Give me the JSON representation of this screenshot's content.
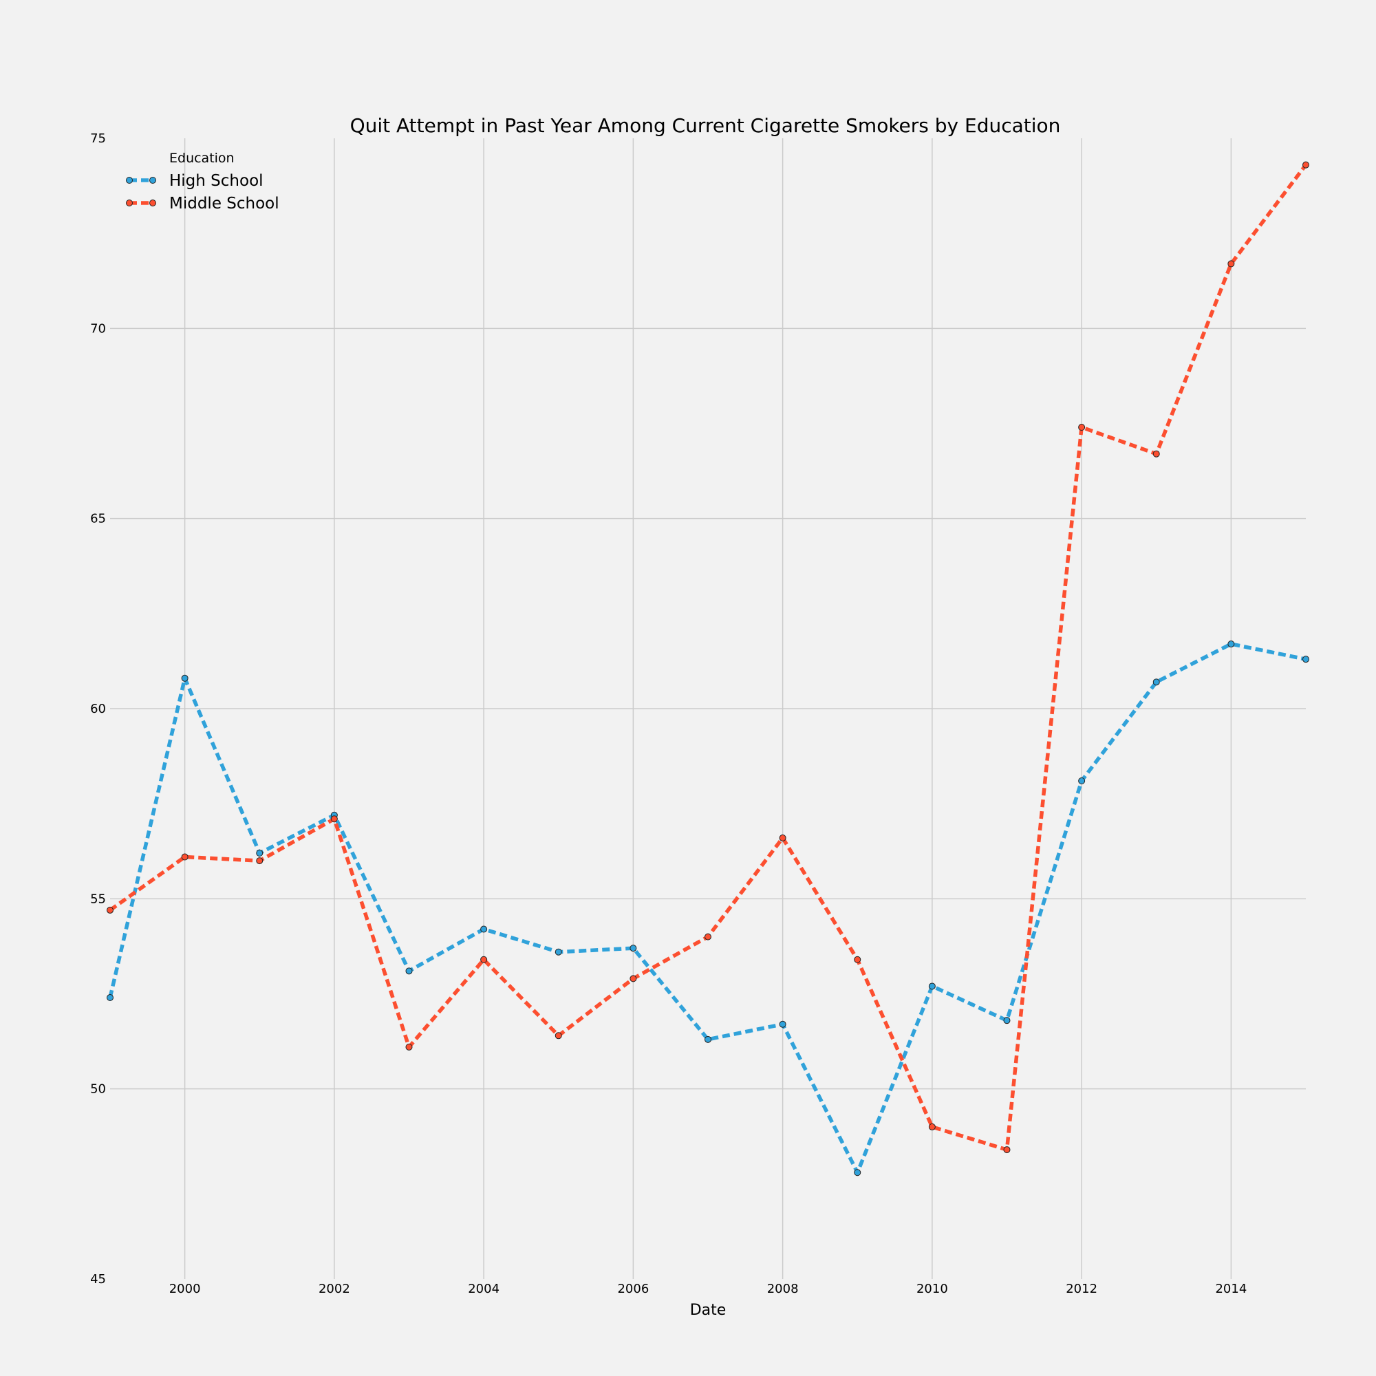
{
  "chart_data": {
    "type": "line",
    "title": "Quit Attempt in Past Year Among Current Cigarette Smokers by Education",
    "xlabel": "Date",
    "ylabel": "",
    "xlim": [
      1999,
      2015
    ],
    "ylim": [
      45,
      75
    ],
    "xticks": [
      2000,
      2002,
      2004,
      2006,
      2008,
      2010,
      2012,
      2014
    ],
    "yticks": [
      45,
      50,
      55,
      60,
      65,
      70,
      75
    ],
    "grid": true,
    "legend": {
      "title": "Education",
      "position": "top-left"
    },
    "x": [
      1999,
      2000,
      2001,
      2002,
      2003,
      2004,
      2005,
      2006,
      2007,
      2008,
      2009,
      2010,
      2011,
      2012,
      2013,
      2014,
      2015
    ],
    "series": [
      {
        "name": "High School",
        "color": "#30a2da",
        "values": [
          52.4,
          60.8,
          56.2,
          57.2,
          53.1,
          54.2,
          53.6,
          53.7,
          51.3,
          51.7,
          47.8,
          52.7,
          51.8,
          58.1,
          60.7,
          61.7,
          61.3
        ]
      },
      {
        "name": "Middle School",
        "color": "#fc4f30",
        "values": [
          54.7,
          56.1,
          56.0,
          57.1,
          51.1,
          53.4,
          51.4,
          52.9,
          54.0,
          56.6,
          53.4,
          49.0,
          48.4,
          67.4,
          66.7,
          71.7,
          74.3
        ]
      }
    ]
  }
}
